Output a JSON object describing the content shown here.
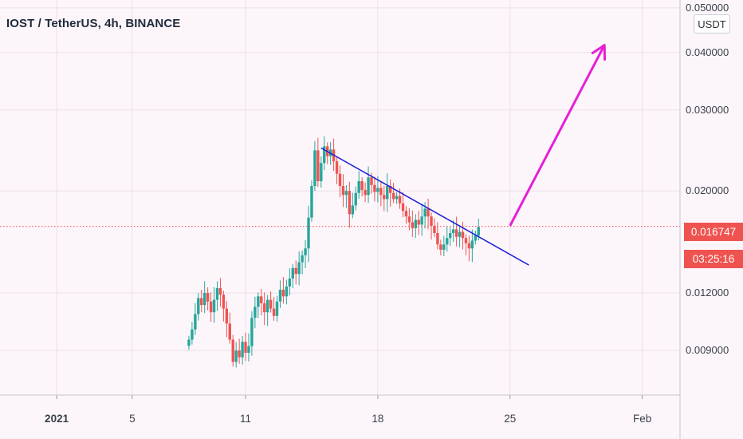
{
  "header": {
    "title": "IOST / TetherUS, 4h, BINANCE"
  },
  "price_axis": {
    "unit_label": "USDT"
  },
  "last_price": {
    "value": "0.016747",
    "countdown": "03:25:16"
  },
  "colors": {
    "up": "#26a69a",
    "down": "#ef5350",
    "trendline": "#1a1ad6",
    "arrow": "#e61fd6",
    "background": "#fcf6fb",
    "grid": "#ecdfea"
  },
  "chart_data": {
    "type": "candlestick",
    "title": "IOST / TetherUS, 4h, BINANCE",
    "yscale": "log",
    "ylim": [
      0.0072,
      0.052
    ],
    "y_tick_labels": [
      "0.050000",
      "0.040000",
      "0.030000",
      "0.020000",
      "0.012000",
      "0.009000"
    ],
    "y_ticks": [
      0.05,
      0.04,
      0.03,
      0.02,
      0.012,
      0.009
    ],
    "x_tick_labels": [
      "2021",
      "5",
      "11",
      "18",
      "25",
      "Feb"
    ],
    "x_ticks": [
      "2021-01-01",
      "2021-01-05",
      "2021-01-11",
      "2021-01-18",
      "2021-01-25",
      "2021-02-01"
    ],
    "xlim": [
      "2020-12-29",
      "2021-02-03"
    ],
    "grid": true,
    "last_price": 0.016747,
    "candles": [
      {
        "t": "2021-01-08",
        "c": 0.0095
      },
      {
        "t": "2021-01-08",
        "c": 0.01
      },
      {
        "t": "2021-01-08",
        "c": 0.0108
      },
      {
        "t": "2021-01-09",
        "c": 0.0117
      },
      {
        "t": "2021-01-09",
        "c": 0.0113
      },
      {
        "t": "2021-01-09",
        "c": 0.012
      },
      {
        "t": "2021-01-09",
        "c": 0.0115
      },
      {
        "t": "2021-01-09",
        "c": 0.0109
      },
      {
        "t": "2021-01-09",
        "c": 0.0116
      },
      {
        "t": "2021-01-10",
        "c": 0.0123
      },
      {
        "t": "2021-01-10",
        "c": 0.0119
      },
      {
        "t": "2021-01-10",
        "c": 0.0111
      },
      {
        "t": "2021-01-10",
        "c": 0.0103
      },
      {
        "t": "2021-01-10",
        "c": 0.0095
      },
      {
        "t": "2021-01-10",
        "c": 0.0085
      },
      {
        "t": "2021-01-11",
        "c": 0.009
      },
      {
        "t": "2021-01-11",
        "c": 0.0087
      },
      {
        "t": "2021-01-11",
        "c": 0.0094
      },
      {
        "t": "2021-01-11",
        "c": 0.0089
      },
      {
        "t": "2021-01-11",
        "c": 0.0092
      },
      {
        "t": "2021-01-11",
        "c": 0.0106
      },
      {
        "t": "2021-01-12",
        "c": 0.0112
      },
      {
        "t": "2021-01-12",
        "c": 0.0118
      },
      {
        "t": "2021-01-12",
        "c": 0.0114
      },
      {
        "t": "2021-01-12",
        "c": 0.0109
      },
      {
        "t": "2021-01-12",
        "c": 0.0116
      },
      {
        "t": "2021-01-12",
        "c": 0.0111
      },
      {
        "t": "2021-01-13",
        "c": 0.0107
      },
      {
        "t": "2021-01-13",
        "c": 0.0115
      },
      {
        "t": "2021-01-13",
        "c": 0.0122
      },
      {
        "t": "2021-01-13",
        "c": 0.0118
      },
      {
        "t": "2021-01-13",
        "c": 0.0124
      },
      {
        "t": "2021-01-13",
        "c": 0.0129
      },
      {
        "t": "2021-01-14",
        "c": 0.0136
      },
      {
        "t": "2021-01-14",
        "c": 0.0132
      },
      {
        "t": "2021-01-14",
        "c": 0.014
      },
      {
        "t": "2021-01-14",
        "c": 0.0145
      },
      {
        "t": "2021-01-14",
        "c": 0.015
      },
      {
        "t": "2021-01-14",
        "c": 0.0175
      },
      {
        "t": "2021-01-15",
        "c": 0.0205
      },
      {
        "t": "2021-01-15",
        "c": 0.0245
      },
      {
        "t": "2021-01-15",
        "c": 0.021
      },
      {
        "t": "2021-01-15",
        "c": 0.023
      },
      {
        "t": "2021-01-15",
        "c": 0.025
      },
      {
        "t": "2021-01-15",
        "c": 0.0238
      },
      {
        "t": "2021-01-16",
        "c": 0.0246
      },
      {
        "t": "2021-01-16",
        "c": 0.0232
      },
      {
        "t": "2021-01-16",
        "c": 0.0218
      },
      {
        "t": "2021-01-16",
        "c": 0.0205
      },
      {
        "t": "2021-01-16",
        "c": 0.0196
      },
      {
        "t": "2021-01-16",
        "c": 0.02
      },
      {
        "t": "2021-01-17",
        "c": 0.0178
      },
      {
        "t": "2021-01-17",
        "c": 0.0186
      },
      {
        "t": "2021-01-17",
        "c": 0.0198
      },
      {
        "t": "2021-01-17",
        "c": 0.021
      },
      {
        "t": "2021-01-17",
        "c": 0.0201
      },
      {
        "t": "2021-01-17",
        "c": 0.0196
      },
      {
        "t": "2021-01-18",
        "c": 0.0214
      },
      {
        "t": "2021-01-18",
        "c": 0.0206
      },
      {
        "t": "2021-01-18",
        "c": 0.0199
      },
      {
        "t": "2021-01-18",
        "c": 0.0203
      },
      {
        "t": "2021-01-18",
        "c": 0.0196
      },
      {
        "t": "2021-01-18",
        "c": 0.0192
      },
      {
        "t": "2021-01-19",
        "c": 0.0205
      },
      {
        "t": "2021-01-19",
        "c": 0.0198
      },
      {
        "t": "2021-01-19",
        "c": 0.0192
      },
      {
        "t": "2021-01-19",
        "c": 0.0195
      },
      {
        "t": "2021-01-19",
        "c": 0.0188
      },
      {
        "t": "2021-01-19",
        "c": 0.0181
      },
      {
        "t": "2021-01-20",
        "c": 0.0176
      },
      {
        "t": "2021-01-20",
        "c": 0.0171
      },
      {
        "t": "2021-01-20",
        "c": 0.0166
      },
      {
        "t": "2021-01-20",
        "c": 0.0173
      },
      {
        "t": "2021-01-20",
        "c": 0.0169
      },
      {
        "t": "2021-01-20",
        "c": 0.0176
      },
      {
        "t": "2021-01-21",
        "c": 0.0183
      },
      {
        "t": "2021-01-21",
        "c": 0.0176
      },
      {
        "t": "2021-01-21",
        "c": 0.0168
      },
      {
        "t": "2021-01-21",
        "c": 0.0162
      },
      {
        "t": "2021-01-21",
        "c": 0.0153
      },
      {
        "t": "2021-01-21",
        "c": 0.0149
      },
      {
        "t": "2021-01-22",
        "c": 0.0153
      },
      {
        "t": "2021-01-22",
        "c": 0.0158
      },
      {
        "t": "2021-01-22",
        "c": 0.0162
      },
      {
        "t": "2021-01-22",
        "c": 0.0165
      },
      {
        "t": "2021-01-22",
        "c": 0.0159
      },
      {
        "t": "2021-01-22",
        "c": 0.0163
      },
      {
        "t": "2021-01-23",
        "c": 0.0158
      },
      {
        "t": "2021-01-23",
        "c": 0.0154
      },
      {
        "t": "2021-01-23",
        "c": 0.015
      },
      {
        "t": "2021-01-23",
        "c": 0.0156
      },
      {
        "t": "2021-01-23",
        "c": 0.016
      },
      {
        "t": "2021-01-23",
        "c": 0.0167
      }
    ],
    "annotations": [
      {
        "type": "trendline",
        "from": {
          "t": "2021-01-15",
          "y": 0.0248
        },
        "to": {
          "t": "2021-01-26",
          "y": 0.0138
        }
      },
      {
        "type": "arrow",
        "from": {
          "t": "2021-01-25",
          "y": 0.0168
        },
        "to": {
          "t": "2021-01-30",
          "y": 0.0415
        }
      }
    ]
  }
}
